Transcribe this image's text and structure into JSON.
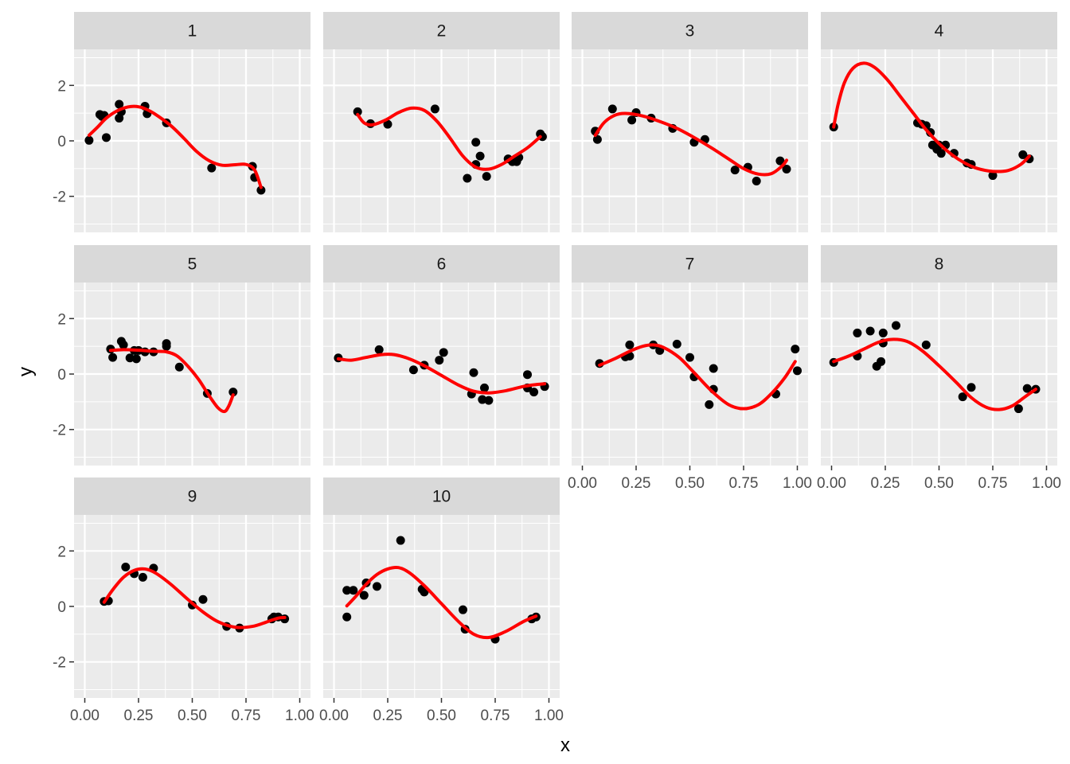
{
  "chart_data": {
    "type": "scatter",
    "xlabel": "x",
    "ylabel": "y",
    "xlim": [
      -0.05,
      1.05
    ],
    "ylim": [
      -3.3,
      3.3
    ],
    "x_ticks": [
      0,
      0.25,
      0.5,
      0.75,
      1.0
    ],
    "x_tick_labels": [
      "0.00",
      "0.25",
      "0.50",
      "0.75",
      "1.00"
    ],
    "y_ticks": [
      -2,
      0,
      2
    ],
    "y_tick_labels": [
      "-2",
      "0",
      "2"
    ],
    "grid": true,
    "background": "#ebebeb",
    "strip_color": "#d9d9d9",
    "point_color": "#000000",
    "line_color": "#ff0000",
    "panels": [
      {
        "label": "1",
        "points": [
          [
            0.02,
            0.02
          ],
          [
            0.07,
            0.95
          ],
          [
            0.08,
            0.88
          ],
          [
            0.09,
            0.92
          ],
          [
            0.1,
            0.12
          ],
          [
            0.16,
            1.32
          ],
          [
            0.16,
            0.82
          ],
          [
            0.17,
            1.05
          ],
          [
            0.28,
            1.25
          ],
          [
            0.29,
            0.98
          ],
          [
            0.38,
            0.65
          ],
          [
            0.59,
            -0.98
          ],
          [
            0.78,
            -0.92
          ],
          [
            0.79,
            -1.32
          ],
          [
            0.82,
            -1.78
          ]
        ],
        "curve": [
          [
            0.02,
            0.2
          ],
          [
            0.06,
            0.5
          ],
          [
            0.1,
            0.82
          ],
          [
            0.15,
            1.08
          ],
          [
            0.2,
            1.22
          ],
          [
            0.24,
            1.24
          ],
          [
            0.28,
            1.16
          ],
          [
            0.33,
            0.95
          ],
          [
            0.4,
            0.55
          ],
          [
            0.46,
            0.1
          ],
          [
            0.52,
            -0.38
          ],
          [
            0.58,
            -0.72
          ],
          [
            0.64,
            -0.88
          ],
          [
            0.7,
            -0.86
          ],
          [
            0.75,
            -0.85
          ],
          [
            0.79,
            -1.05
          ],
          [
            0.82,
            -1.68
          ]
        ]
      },
      {
        "label": "2",
        "points": [
          [
            0.11,
            1.05
          ],
          [
            0.17,
            0.62
          ],
          [
            0.25,
            0.6
          ],
          [
            0.47,
            1.15
          ],
          [
            0.62,
            -1.35
          ],
          [
            0.66,
            -0.85
          ],
          [
            0.66,
            -0.05
          ],
          [
            0.68,
            -0.55
          ],
          [
            0.71,
            -1.28
          ],
          [
            0.81,
            -0.65
          ],
          [
            0.83,
            -0.75
          ],
          [
            0.85,
            -0.75
          ],
          [
            0.86,
            -0.6
          ],
          [
            0.96,
            0.25
          ],
          [
            0.97,
            0.15
          ]
        ],
        "curve": [
          [
            0.11,
            0.95
          ],
          [
            0.14,
            0.65
          ],
          [
            0.18,
            0.58
          ],
          [
            0.24,
            0.75
          ],
          [
            0.3,
            1.02
          ],
          [
            0.36,
            1.18
          ],
          [
            0.42,
            1.1
          ],
          [
            0.48,
            0.7
          ],
          [
            0.54,
            0.1
          ],
          [
            0.6,
            -0.55
          ],
          [
            0.66,
            -0.95
          ],
          [
            0.72,
            -1.02
          ],
          [
            0.78,
            -0.85
          ],
          [
            0.84,
            -0.55
          ],
          [
            0.9,
            -0.25
          ],
          [
            0.96,
            0.15
          ]
        ]
      },
      {
        "label": "3",
        "points": [
          [
            0.06,
            0.35
          ],
          [
            0.07,
            0.05
          ],
          [
            0.14,
            1.15
          ],
          [
            0.23,
            0.75
          ],
          [
            0.25,
            1.02
          ],
          [
            0.32,
            0.82
          ],
          [
            0.42,
            0.45
          ],
          [
            0.52,
            -0.05
          ],
          [
            0.57,
            0.05
          ],
          [
            0.71,
            -1.05
          ],
          [
            0.77,
            -0.95
          ],
          [
            0.81,
            -1.45
          ],
          [
            0.92,
            -0.72
          ],
          [
            0.95,
            -1.02
          ]
        ],
        "curve": [
          [
            0.06,
            0.2
          ],
          [
            0.1,
            0.65
          ],
          [
            0.15,
            0.92
          ],
          [
            0.2,
            0.99
          ],
          [
            0.28,
            0.9
          ],
          [
            0.36,
            0.7
          ],
          [
            0.44,
            0.45
          ],
          [
            0.52,
            0.12
          ],
          [
            0.6,
            -0.25
          ],
          [
            0.68,
            -0.65
          ],
          [
            0.75,
            -1.0
          ],
          [
            0.82,
            -1.2
          ],
          [
            0.88,
            -1.18
          ],
          [
            0.93,
            -0.9
          ],
          [
            0.95,
            -0.7
          ]
        ]
      },
      {
        "label": "4",
        "points": [
          [
            0.01,
            0.5
          ],
          [
            0.4,
            0.65
          ],
          [
            0.42,
            0.6
          ],
          [
            0.44,
            0.55
          ],
          [
            0.46,
            0.3
          ],
          [
            0.47,
            -0.15
          ],
          [
            0.49,
            -0.3
          ],
          [
            0.5,
            -0.15
          ],
          [
            0.51,
            -0.45
          ],
          [
            0.53,
            -0.15
          ],
          [
            0.57,
            -0.45
          ],
          [
            0.63,
            -0.8
          ],
          [
            0.65,
            -0.85
          ],
          [
            0.75,
            -1.25
          ],
          [
            0.89,
            -0.5
          ],
          [
            0.92,
            -0.65
          ]
        ],
        "curve": [
          [
            0.01,
            0.5
          ],
          [
            0.03,
            1.3
          ],
          [
            0.06,
            2.1
          ],
          [
            0.1,
            2.62
          ],
          [
            0.15,
            2.8
          ],
          [
            0.2,
            2.65
          ],
          [
            0.26,
            2.2
          ],
          [
            0.32,
            1.6
          ],
          [
            0.38,
            1.0
          ],
          [
            0.44,
            0.4
          ],
          [
            0.5,
            -0.1
          ],
          [
            0.56,
            -0.5
          ],
          [
            0.62,
            -0.8
          ],
          [
            0.68,
            -1.0
          ],
          [
            0.75,
            -1.1
          ],
          [
            0.82,
            -1.07
          ],
          [
            0.88,
            -0.85
          ],
          [
            0.92,
            -0.55
          ]
        ]
      },
      {
        "label": "5",
        "points": [
          [
            0.12,
            0.9
          ],
          [
            0.13,
            0.6
          ],
          [
            0.17,
            1.18
          ],
          [
            0.18,
            1.05
          ],
          [
            0.21,
            0.58
          ],
          [
            0.23,
            0.85
          ],
          [
            0.24,
            0.55
          ],
          [
            0.25,
            0.85
          ],
          [
            0.28,
            0.8
          ],
          [
            0.32,
            0.8
          ],
          [
            0.38,
            1.1
          ],
          [
            0.38,
            1.0
          ],
          [
            0.44,
            0.25
          ],
          [
            0.57,
            -0.7
          ],
          [
            0.69,
            -0.65
          ]
        ],
        "curve": [
          [
            0.12,
            0.85
          ],
          [
            0.18,
            0.88
          ],
          [
            0.25,
            0.86
          ],
          [
            0.32,
            0.82
          ],
          [
            0.38,
            0.8
          ],
          [
            0.43,
            0.65
          ],
          [
            0.48,
            0.28
          ],
          [
            0.53,
            -0.2
          ],
          [
            0.58,
            -0.8
          ],
          [
            0.62,
            -1.22
          ],
          [
            0.65,
            -1.35
          ],
          [
            0.67,
            -1.15
          ],
          [
            0.69,
            -0.75
          ]
        ]
      },
      {
        "label": "6",
        "points": [
          [
            0.02,
            0.58
          ],
          [
            0.21,
            0.88
          ],
          [
            0.37,
            0.15
          ],
          [
            0.42,
            0.32
          ],
          [
            0.49,
            0.5
          ],
          [
            0.51,
            0.78
          ],
          [
            0.64,
            -0.72
          ],
          [
            0.65,
            0.05
          ],
          [
            0.69,
            -0.92
          ],
          [
            0.7,
            -0.5
          ],
          [
            0.72,
            -0.95
          ],
          [
            0.9,
            -0.02
          ],
          [
            0.9,
            -0.5
          ],
          [
            0.93,
            -0.65
          ],
          [
            0.98,
            -0.45
          ]
        ],
        "curve": [
          [
            0.02,
            0.55
          ],
          [
            0.08,
            0.5
          ],
          [
            0.15,
            0.6
          ],
          [
            0.22,
            0.7
          ],
          [
            0.28,
            0.7
          ],
          [
            0.35,
            0.55
          ],
          [
            0.42,
            0.3
          ],
          [
            0.5,
            -0.05
          ],
          [
            0.58,
            -0.4
          ],
          [
            0.65,
            -0.62
          ],
          [
            0.72,
            -0.68
          ],
          [
            0.8,
            -0.6
          ],
          [
            0.88,
            -0.45
          ],
          [
            0.94,
            -0.38
          ],
          [
            0.98,
            -0.35
          ]
        ]
      },
      {
        "label": "7",
        "points": [
          [
            0.08,
            0.38
          ],
          [
            0.2,
            0.62
          ],
          [
            0.22,
            0.65
          ],
          [
            0.22,
            1.05
          ],
          [
            0.33,
            1.05
          ],
          [
            0.36,
            0.85
          ],
          [
            0.44,
            1.08
          ],
          [
            0.5,
            0.6
          ],
          [
            0.52,
            -0.1
          ],
          [
            0.59,
            -1.1
          ],
          [
            0.61,
            0.2
          ],
          [
            0.61,
            -0.55
          ],
          [
            0.9,
            -0.72
          ],
          [
            0.99,
            0.9
          ],
          [
            1.0,
            0.12
          ]
        ],
        "curve": [
          [
            0.08,
            0.32
          ],
          [
            0.15,
            0.55
          ],
          [
            0.22,
            0.82
          ],
          [
            0.28,
            1.0
          ],
          [
            0.33,
            1.05
          ],
          [
            0.38,
            0.95
          ],
          [
            0.45,
            0.6
          ],
          [
            0.52,
            0.05
          ],
          [
            0.6,
            -0.6
          ],
          [
            0.68,
            -1.1
          ],
          [
            0.75,
            -1.25
          ],
          [
            0.82,
            -1.1
          ],
          [
            0.88,
            -0.7
          ],
          [
            0.94,
            -0.15
          ],
          [
            0.99,
            0.45
          ]
        ]
      },
      {
        "label": "8",
        "points": [
          [
            0.01,
            0.42
          ],
          [
            0.12,
            1.48
          ],
          [
            0.12,
            0.65
          ],
          [
            0.18,
            1.55
          ],
          [
            0.21,
            0.28
          ],
          [
            0.23,
            0.45
          ],
          [
            0.24,
            1.48
          ],
          [
            0.24,
            1.12
          ],
          [
            0.3,
            1.75
          ],
          [
            0.44,
            1.05
          ],
          [
            0.61,
            -0.82
          ],
          [
            0.65,
            -0.48
          ],
          [
            0.87,
            -1.25
          ],
          [
            0.91,
            -0.52
          ],
          [
            0.95,
            -0.55
          ]
        ],
        "curve": [
          [
            0.01,
            0.45
          ],
          [
            0.08,
            0.65
          ],
          [
            0.15,
            0.9
          ],
          [
            0.22,
            1.15
          ],
          [
            0.28,
            1.25
          ],
          [
            0.35,
            1.18
          ],
          [
            0.42,
            0.85
          ],
          [
            0.5,
            0.3
          ],
          [
            0.58,
            -0.3
          ],
          [
            0.65,
            -0.85
          ],
          [
            0.72,
            -1.2
          ],
          [
            0.78,
            -1.28
          ],
          [
            0.84,
            -1.15
          ],
          [
            0.9,
            -0.82
          ],
          [
            0.95,
            -0.55
          ]
        ]
      },
      {
        "label": "9",
        "points": [
          [
            0.09,
            0.18
          ],
          [
            0.11,
            0.2
          ],
          [
            0.19,
            1.42
          ],
          [
            0.23,
            1.18
          ],
          [
            0.27,
            1.05
          ],
          [
            0.32,
            1.38
          ],
          [
            0.5,
            0.05
          ],
          [
            0.55,
            0.25
          ],
          [
            0.66,
            -0.72
          ],
          [
            0.72,
            -0.78
          ],
          [
            0.87,
            -0.45
          ],
          [
            0.88,
            -0.38
          ],
          [
            0.9,
            -0.38
          ],
          [
            0.93,
            -0.45
          ]
        ],
        "curve": [
          [
            0.09,
            0.15
          ],
          [
            0.13,
            0.6
          ],
          [
            0.18,
            1.05
          ],
          [
            0.23,
            1.3
          ],
          [
            0.28,
            1.35
          ],
          [
            0.33,
            1.2
          ],
          [
            0.4,
            0.8
          ],
          [
            0.48,
            0.25
          ],
          [
            0.55,
            -0.2
          ],
          [
            0.62,
            -0.55
          ],
          [
            0.7,
            -0.75
          ],
          [
            0.78,
            -0.72
          ],
          [
            0.85,
            -0.55
          ],
          [
            0.9,
            -0.42
          ],
          [
            0.93,
            -0.4
          ]
        ]
      },
      {
        "label": "10",
        "points": [
          [
            0.06,
            0.58
          ],
          [
            0.06,
            -0.38
          ],
          [
            0.09,
            0.58
          ],
          [
            0.14,
            0.4
          ],
          [
            0.15,
            0.85
          ],
          [
            0.2,
            0.72
          ],
          [
            0.31,
            2.38
          ],
          [
            0.41,
            0.62
          ],
          [
            0.42,
            0.52
          ],
          [
            0.6,
            -0.12
          ],
          [
            0.61,
            -0.82
          ],
          [
            0.75,
            -1.18
          ],
          [
            0.92,
            -0.45
          ],
          [
            0.94,
            -0.38
          ]
        ],
        "curve": [
          [
            0.06,
            0.02
          ],
          [
            0.1,
            0.35
          ],
          [
            0.15,
            0.8
          ],
          [
            0.2,
            1.15
          ],
          [
            0.25,
            1.35
          ],
          [
            0.3,
            1.4
          ],
          [
            0.35,
            1.22
          ],
          [
            0.42,
            0.75
          ],
          [
            0.5,
            0.1
          ],
          [
            0.58,
            -0.55
          ],
          [
            0.65,
            -1.0
          ],
          [
            0.72,
            -1.12
          ],
          [
            0.8,
            -0.9
          ],
          [
            0.88,
            -0.55
          ],
          [
            0.94,
            -0.35
          ]
        ]
      }
    ]
  }
}
